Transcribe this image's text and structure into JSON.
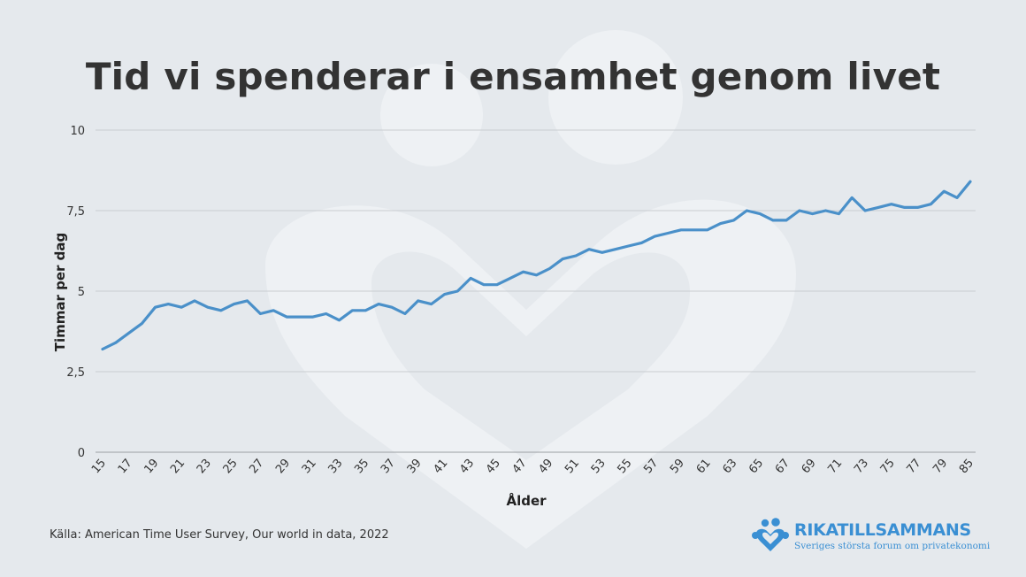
{
  "page": {
    "title": "Tid vi spenderar i ensamhet genom livet",
    "source": "Källa: American Time User Survey, Our world in data, 2022"
  },
  "logo": {
    "name": "RIKATILLSAMMANS",
    "tagline": "Sveriges största forum om privatekonomi",
    "color": "#3a8fd3"
  },
  "colors": {
    "background": "#e5e9ed",
    "line": "#4a90c9",
    "grid": "#c9cdd1",
    "watermark": "#eef1f4"
  },
  "chart_data": {
    "type": "line",
    "title": "Tid vi spenderar i ensamhet genom livet",
    "xlabel": "Ålder",
    "ylabel": "Timmar per dag",
    "ylim": [
      0,
      10
    ],
    "y_ticks": [
      {
        "value": 0,
        "label": "0"
      },
      {
        "value": 2.5,
        "label": "2,5"
      },
      {
        "value": 5,
        "label": "5"
      },
      {
        "value": 7.5,
        "label": "7,5"
      },
      {
        "value": 10,
        "label": "10"
      }
    ],
    "x_tick_labels": [
      "15",
      "17",
      "19",
      "21",
      "23",
      "25",
      "27",
      "29",
      "31",
      "33",
      "35",
      "37",
      "39",
      "41",
      "43",
      "45",
      "47",
      "49",
      "51",
      "53",
      "55",
      "57",
      "59",
      "61",
      "63",
      "65",
      "67",
      "69",
      "71",
      "73",
      "75",
      "77",
      "79",
      "85"
    ],
    "grid": true,
    "x": [
      15,
      16,
      17,
      18,
      19,
      20,
      21,
      22,
      23,
      24,
      25,
      26,
      27,
      28,
      29,
      30,
      31,
      32,
      33,
      34,
      35,
      36,
      37,
      38,
      39,
      40,
      41,
      42,
      43,
      44,
      45,
      46,
      47,
      48,
      49,
      50,
      51,
      52,
      53,
      54,
      55,
      56,
      57,
      58,
      59,
      60,
      61,
      62,
      63,
      64,
      65,
      66,
      67,
      68,
      69,
      70,
      71,
      72,
      73,
      74,
      75,
      76,
      77,
      78,
      79,
      80,
      85
    ],
    "values": [
      3.2,
      3.4,
      3.7,
      4.0,
      4.5,
      4.6,
      4.5,
      4.7,
      4.5,
      4.4,
      4.6,
      4.7,
      4.3,
      4.4,
      4.2,
      4.2,
      4.2,
      4.3,
      4.1,
      4.4,
      4.4,
      4.6,
      4.5,
      4.3,
      4.7,
      4.6,
      4.9,
      5.0,
      5.4,
      5.2,
      5.2,
      5.4,
      5.6,
      5.5,
      5.7,
      6.0,
      6.1,
      6.3,
      6.2,
      6.3,
      6.4,
      6.5,
      6.7,
      6.8,
      6.9,
      6.9,
      6.9,
      7.1,
      7.2,
      7.5,
      7.4,
      7.2,
      7.2,
      7.5,
      7.4,
      7.5,
      7.4,
      7.9,
      7.5,
      7.6,
      7.7,
      7.6,
      7.6,
      7.7,
      8.1,
      7.9,
      8.4
    ]
  }
}
